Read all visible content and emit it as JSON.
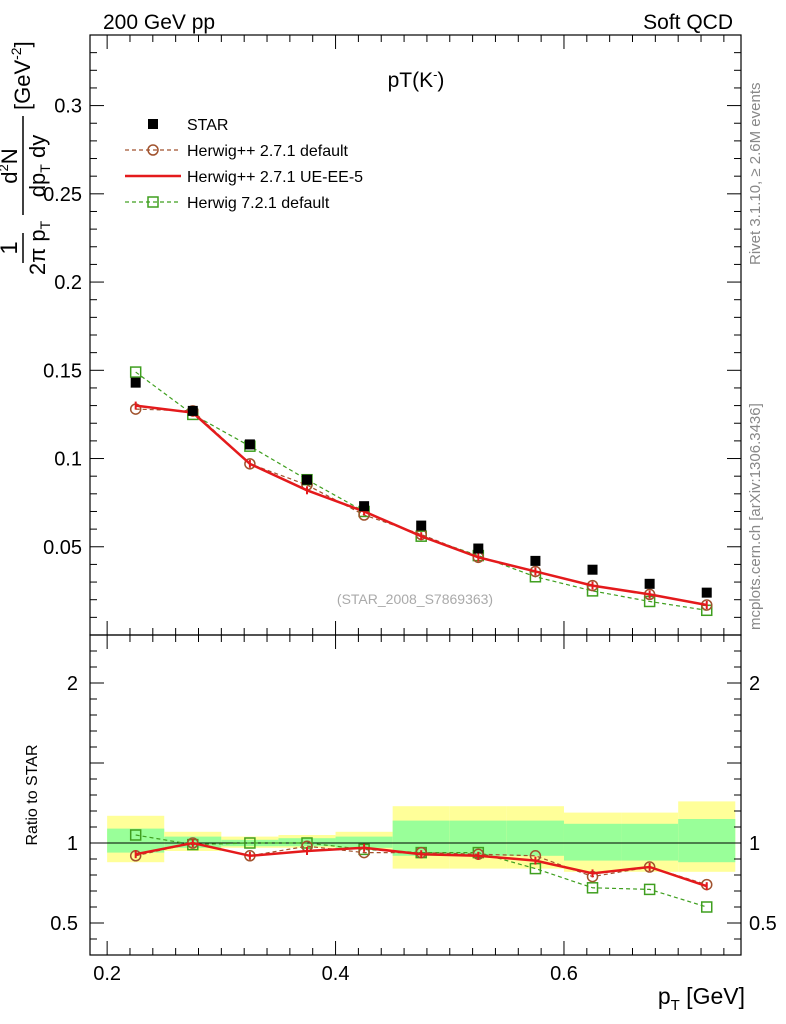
{
  "header": {
    "left": "200 GeV pp",
    "right": "Soft QCD"
  },
  "side_labels": {
    "rivet": "Rivet 3.1.10, ≥ 2.6M events",
    "source": "mcplots.cern.ch [arXiv:1306.3436]"
  },
  "watermark": "(STAR_2008_S7869363)",
  "colors": {
    "star": "#000000",
    "herwig_default": "#a0522d",
    "herwig_ue": "#e41a1c",
    "herwig7": "#3f9f1f",
    "band_outer": "#ffff99",
    "band_inner": "#99ff99"
  },
  "chart_data": [
    {
      "type": "scatter",
      "panel": "main",
      "title": "pT(K⁻)",
      "ylabel": "1/(2π pT) d²N/(dpT dy) [GeV⁻²]",
      "ylim": [
        0,
        0.34
      ],
      "xlim": [
        0.185,
        0.755
      ],
      "legend_position": "top-left",
      "yticks": [
        "0.05",
        "0.1",
        "0.15",
        "0.2",
        "0.25",
        "0.3"
      ],
      "x": [
        0.225,
        0.275,
        0.325,
        0.375,
        0.425,
        0.475,
        0.525,
        0.575,
        0.625,
        0.675,
        0.725
      ],
      "series": [
        {
          "name": "STAR",
          "key": "star",
          "values": [
            0.143,
            0.127,
            0.108,
            0.088,
            0.073,
            0.062,
            0.049,
            0.042,
            0.037,
            0.029,
            0.024
          ]
        },
        {
          "name": "Herwig++ 2.7.1 default",
          "key": "herwig_default",
          "values": [
            0.128,
            0.127,
            0.097,
            0.085,
            0.068,
            0.057,
            0.044,
            0.036,
            0.028,
            0.023,
            0.017
          ]
        },
        {
          "name": "Herwig++ 2.7.1 UE-EE-5",
          "key": "herwig_ue",
          "values": [
            0.13,
            0.126,
            0.097,
            0.082,
            0.07,
            0.056,
            0.044,
            0.036,
            0.028,
            0.023,
            0.017
          ]
        },
        {
          "name": "Herwig 7.2.1 default",
          "key": "herwig7",
          "values": [
            0.149,
            0.125,
            0.107,
            0.088,
            0.07,
            0.056,
            0.045,
            0.033,
            0.025,
            0.019,
            0.014
          ]
        }
      ]
    },
    {
      "type": "line",
      "panel": "ratio",
      "ylabel": "Ratio to STAR",
      "ylim": [
        0.3,
        2.3
      ],
      "xlim": [
        0.185,
        0.755
      ],
      "xlabel": "pT [GeV]",
      "xticks": [
        "0.2",
        "0.4",
        "0.6"
      ],
      "yticks": [
        "0.5",
        "1",
        "2"
      ],
      "x": [
        0.225,
        0.275,
        0.325,
        0.375,
        0.425,
        0.475,
        0.525,
        0.575,
        0.625,
        0.675,
        0.725
      ],
      "bands": {
        "edges": [
          [
            0.2,
            0.25
          ],
          [
            0.25,
            0.3
          ],
          [
            0.3,
            0.35
          ],
          [
            0.35,
            0.4
          ],
          [
            0.4,
            0.45
          ],
          [
            0.45,
            0.5
          ],
          [
            0.5,
            0.55
          ],
          [
            0.55,
            0.6
          ],
          [
            0.6,
            0.65
          ],
          [
            0.65,
            0.7
          ],
          [
            0.7,
            0.75
          ]
        ],
        "outer": [
          [
            0.88,
            1.17
          ],
          [
            0.95,
            1.07
          ],
          [
            0.97,
            1.04
          ],
          [
            0.97,
            1.05
          ],
          [
            0.96,
            1.07
          ],
          [
            0.84,
            1.23
          ],
          [
            0.84,
            1.23
          ],
          [
            0.84,
            1.23
          ],
          [
            0.82,
            1.19
          ],
          [
            0.82,
            1.19
          ],
          [
            0.82,
            1.26
          ]
        ],
        "inner": [
          [
            0.94,
            1.09
          ],
          [
            0.97,
            1.04
          ],
          [
            0.98,
            1.02
          ],
          [
            0.98,
            1.03
          ],
          [
            0.97,
            1.04
          ],
          [
            0.92,
            1.14
          ],
          [
            0.92,
            1.14
          ],
          [
            0.92,
            1.14
          ],
          [
            0.89,
            1.12
          ],
          [
            0.89,
            1.12
          ],
          [
            0.88,
            1.15
          ]
        ]
      },
      "series": [
        {
          "name": "Herwig++ 2.7.1 default",
          "key": "herwig_default",
          "values": [
            0.92,
            1.0,
            0.92,
            0.98,
            0.94,
            0.94,
            0.93,
            0.92,
            0.79,
            0.85,
            0.74
          ]
        },
        {
          "name": "Herwig++ 2.7.1 UE-EE-5",
          "key": "herwig_ue",
          "values": [
            0.93,
            1.0,
            0.92,
            0.95,
            0.97,
            0.93,
            0.92,
            0.89,
            0.81,
            0.85,
            0.73
          ]
        },
        {
          "name": "Herwig 7.2.1 default",
          "key": "herwig7",
          "values": [
            1.05,
            0.99,
            1.0,
            1.0,
            0.96,
            0.94,
            0.94,
            0.84,
            0.72,
            0.71,
            0.6
          ]
        }
      ]
    }
  ]
}
